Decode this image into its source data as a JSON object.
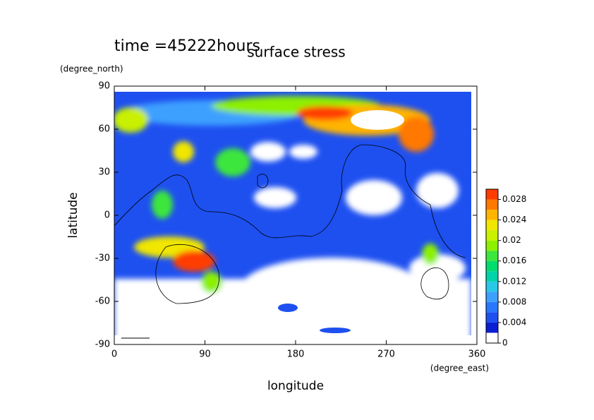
{
  "chart_data": {
    "type": "contour",
    "title": "surface stress",
    "annotation": "time =45222hours",
    "xlabel": "longitude",
    "ylabel": "latitude",
    "x_units": "(degree_east)",
    "y_units": "(degree_north)",
    "xlim": [
      0,
      360
    ],
    "ylim": [
      -90,
      90
    ],
    "xticks": [
      0,
      90,
      180,
      270,
      360
    ],
    "yticks": [
      -90,
      -60,
      -30,
      0,
      30,
      60,
      90
    ],
    "colorbar": {
      "levels": [
        0,
        0.002,
        0.004,
        0.006,
        0.008,
        0.01,
        0.012,
        0.014,
        0.016,
        0.018,
        0.02,
        0.022,
        0.024,
        0.026,
        0.028,
        0.03
      ],
      "colors": [
        "#ffffff",
        "#0a1ed2",
        "#1e50f0",
        "#2878ff",
        "#3ca0ff",
        "#28c8e6",
        "#00d2aa",
        "#00dc6e",
        "#3ce63c",
        "#8cf000",
        "#c8f000",
        "#f0e600",
        "#ffb400",
        "#ff7800",
        "#ff3c00"
      ],
      "ticks": [
        0,
        0.004,
        0.008,
        0.012,
        0.016,
        0.02,
        0.024,
        0.028
      ]
    }
  }
}
